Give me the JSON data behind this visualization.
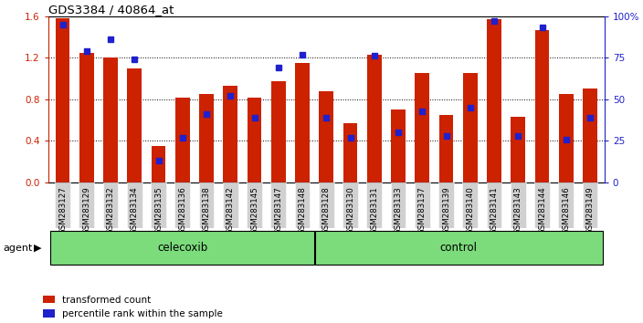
{
  "title": "GDS3384 / 40864_at",
  "samples": [
    "GSM283127",
    "GSM283129",
    "GSM283132",
    "GSM283134",
    "GSM283135",
    "GSM283136",
    "GSM283138",
    "GSM283142",
    "GSM283145",
    "GSM283147",
    "GSM283148",
    "GSM283128",
    "GSM283130",
    "GSM283131",
    "GSM283133",
    "GSM283137",
    "GSM283139",
    "GSM283140",
    "GSM283141",
    "GSM283143",
    "GSM283144",
    "GSM283146",
    "GSM283149"
  ],
  "red_values": [
    1.58,
    1.25,
    1.2,
    1.1,
    0.35,
    0.82,
    0.85,
    0.93,
    0.82,
    0.97,
    1.15,
    0.88,
    0.57,
    1.23,
    0.7,
    1.05,
    0.65,
    1.05,
    1.57,
    0.63,
    1.47,
    0.85,
    0.9
  ],
  "blue_pct": [
    95,
    79,
    86,
    74,
    13,
    27,
    41,
    52,
    39,
    69,
    77,
    39,
    27,
    76,
    30,
    43,
    28,
    45,
    97,
    28,
    93,
    26,
    39
  ],
  "group_counts": [
    11,
    12
  ],
  "bar_color_red": "#cc2200",
  "bar_color_blue": "#2020cc",
  "ylim_left": [
    0,
    1.6
  ],
  "yticks_left": [
    0,
    0.4,
    0.8,
    1.2,
    1.6
  ],
  "yticks_right": [
    0,
    25,
    50,
    75,
    100
  ],
  "yticklabels_right": [
    "0",
    "25",
    "50",
    "75",
    "100%"
  ],
  "green_color": "#7cdc7c",
  "gray_xtick_bg": "#d0d0d0",
  "legend_items": [
    "transformed count",
    "percentile rank within the sample"
  ]
}
